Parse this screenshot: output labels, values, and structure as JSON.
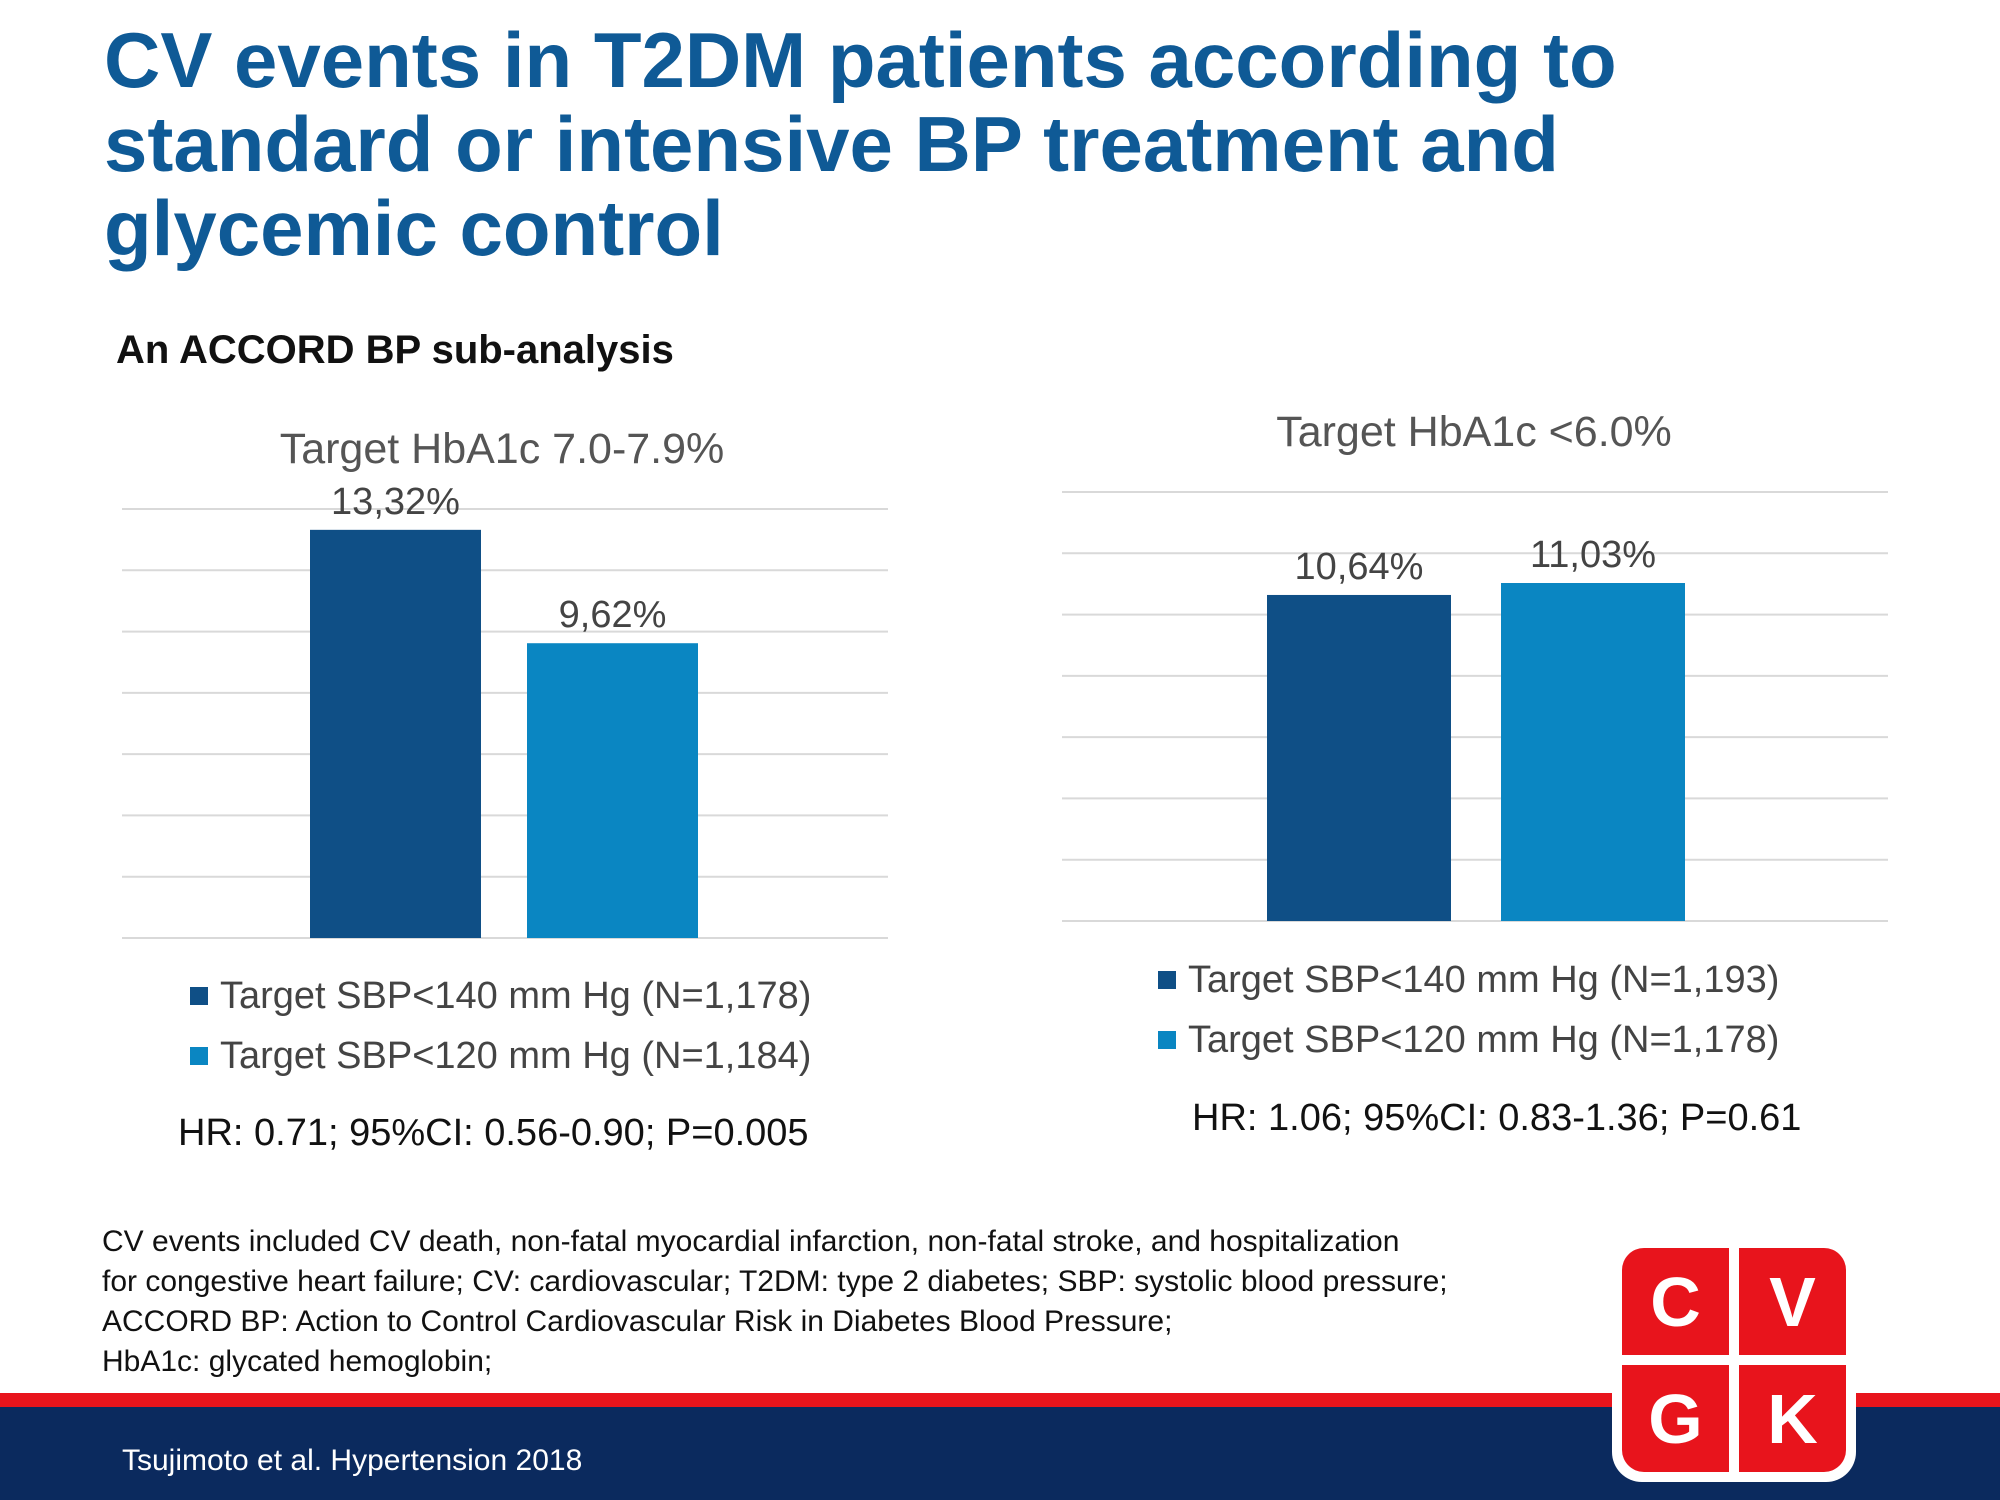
{
  "page": {
    "title": "CV events in T2DM patients according to standard or intensive BP treatment and glycemic control",
    "subtitle": "An ACCORD BP sub-analysis",
    "footnotes": [
      "CV events included CV death, non-fatal myocardial infarction, non-fatal stroke, and hospitalization",
      "for congestive heart failure; CV: cardiovascular; T2DM: type 2 diabetes; SBP: systolic blood pressure;",
      "ACCORD BP: Action to Control Cardiovascular Risk in Diabetes Blood Pressure;",
      "HbA1c: glycated hemoglobin;"
    ],
    "citation": "Tsujimoto et al. Hypertension 2018",
    "logo": {
      "letters": [
        "C",
        "V",
        "G",
        "K"
      ],
      "color": "#e8141c"
    }
  },
  "colors": {
    "title": "#0f5a96",
    "series_dark": "#0f4f86",
    "series_light": "#0a86c2",
    "stripe_red": "#e8141c",
    "footer_blue": "#0b2a5e"
  },
  "chart_data": [
    {
      "type": "bar",
      "title": "Target HbA1c 7.0-7.9%",
      "categories": [
        "Target SBP<140 mm Hg (N=1,178)",
        "Target SBP<120 mm Hg (N=1,184)"
      ],
      "values": [
        13.32,
        9.62
      ],
      "labels": [
        "13,32%",
        "9,62%"
      ],
      "ylim": [
        0,
        14
      ],
      "grid": true,
      "legend": "bottom",
      "stat": "HR: 0.71; 95%CI: 0.56-0.90; P=0.005"
    },
    {
      "type": "bar",
      "title": "Target HbA1c <6.0%",
      "categories": [
        "Target  SBP<140 mm Hg (N=1,193)",
        "Target SBP<120 mm Hg (N=1,178)"
      ],
      "values": [
        10.64,
        11.03
      ],
      "labels": [
        "10,64%",
        "11,03%"
      ],
      "ylim": [
        0,
        14
      ],
      "grid": true,
      "legend": "bottom",
      "stat": "HR: 1.06; 95%CI: 0.83-1.36; P=0.61"
    }
  ]
}
